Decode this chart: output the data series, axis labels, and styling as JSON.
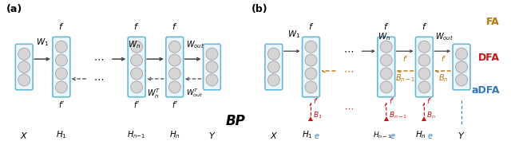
{
  "fig_width": 6.4,
  "fig_height": 1.82,
  "dpi": 100,
  "bg_color": "#ffffff",
  "neuron_fill": "#d5d5d5",
  "neuron_edge": "#aaaaaa",
  "box_edge": "#6BB8D4",
  "box_fill": "#EAF5FB",
  "fwd_color": "#444444",
  "bp_back_color": "#444444",
  "fa_color": "#B8730A",
  "dfa_color": "#CC1111",
  "adfa_color": "#3377BB",
  "black": "#000000",
  "panel_a_label": "(a)",
  "panel_b_label": "(b)",
  "bp_label": "BP",
  "fa_label": "FA",
  "dfa_label": "DFA",
  "adfa_label": "aDFA"
}
